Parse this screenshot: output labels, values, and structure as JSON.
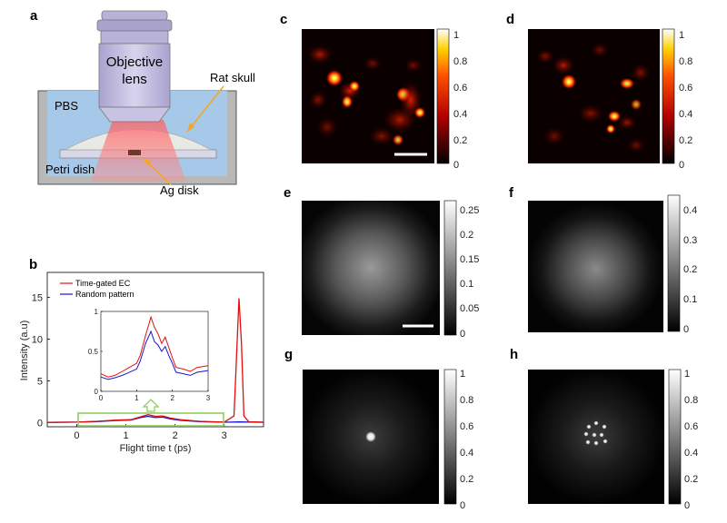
{
  "panel_labels": [
    "a",
    "b",
    "c",
    "d",
    "e",
    "f",
    "g",
    "h"
  ],
  "schematic": {
    "objective": [
      "Objective",
      "lens"
    ],
    "skull": "Rat skull",
    "pbs": "PBS",
    "petri": "Petri dish",
    "disk": "Ag disk"
  },
  "colorbars": {
    "c": [
      "1",
      "0.8",
      "0.6",
      "0.4",
      "0.2",
      "0"
    ],
    "d": [
      "1",
      "0.8",
      "0.6",
      "0.4",
      "0.2",
      "0"
    ],
    "e": [
      "0.25",
      "0.2",
      "0.15",
      "0.1",
      "0.05",
      "0"
    ],
    "f": [
      "0.4",
      "0.3",
      "0.2",
      "0.1",
      "0"
    ],
    "g": [
      "1",
      "0.8",
      "0.6",
      "0.4",
      "0.2",
      "0"
    ],
    "h": [
      "1",
      "0.8",
      "0.6",
      "0.4",
      "0.2",
      "0"
    ]
  },
  "chart_data": {
    "type": "line",
    "xlabel": "Flight time t (ps)",
    "ylabel": "Intensity (a.u)",
    "xticks": [
      "0",
      "1",
      "2",
      "3"
    ],
    "yticks": [
      "0",
      "5",
      "10",
      "15"
    ],
    "xlim": [
      -0.6,
      3.8
    ],
    "ylim": [
      -0.5,
      18
    ],
    "legend_position": "top-left",
    "series": [
      {
        "name": "Time-gated EC",
        "color": "#e01010",
        "x": [
          -0.6,
          0,
          0.4,
          0.8,
          1.1,
          1.3,
          1.45,
          1.6,
          1.75,
          1.9,
          2.1,
          2.5,
          3.0,
          3.2,
          3.3,
          3.35,
          3.4,
          3.5,
          3.8
        ],
        "y": [
          0.02,
          0.05,
          0.15,
          0.3,
          0.35,
          0.7,
          0.95,
          0.75,
          0.8,
          0.55,
          0.35,
          0.15,
          0.05,
          0.8,
          14.9,
          9.5,
          0.8,
          0.1,
          0.05
        ]
      },
      {
        "name": "Random pattern",
        "color": "#1515cc",
        "x": [
          -0.6,
          0,
          0.4,
          0.8,
          1.1,
          1.3,
          1.45,
          1.6,
          1.75,
          1.9,
          2.1,
          2.5,
          3.0,
          3.3,
          3.8
        ],
        "y": [
          0.02,
          0.05,
          0.12,
          0.25,
          0.3,
          0.6,
          0.75,
          0.6,
          0.65,
          0.45,
          0.28,
          0.12,
          0.04,
          0.08,
          0.03
        ]
      }
    ],
    "inset": {
      "xticks": [
        "0",
        "1",
        "2",
        "3"
      ],
      "yticks": [
        "0",
        "0.5",
        "1"
      ],
      "xlim": [
        0,
        3
      ],
      "ylim": [
        0,
        1
      ],
      "series": [
        {
          "name": "Time-gated EC",
          "color": "#e01010",
          "x": [
            0,
            0.2,
            0.4,
            0.6,
            0.8,
            1.0,
            1.1,
            1.25,
            1.4,
            1.5,
            1.6,
            1.7,
            1.8,
            1.9,
            2.0,
            2.1,
            2.3,
            2.5,
            2.7,
            3.0
          ],
          "y": [
            0.22,
            0.18,
            0.2,
            0.25,
            0.3,
            0.35,
            0.45,
            0.7,
            0.93,
            0.8,
            0.72,
            0.6,
            0.68,
            0.55,
            0.42,
            0.3,
            0.28,
            0.25,
            0.3,
            0.32
          ]
        },
        {
          "name": "Random pattern",
          "color": "#1515cc",
          "x": [
            0,
            0.2,
            0.4,
            0.6,
            0.8,
            1.0,
            1.1,
            1.25,
            1.4,
            1.5,
            1.6,
            1.7,
            1.8,
            1.9,
            2.0,
            2.1,
            2.3,
            2.5,
            2.7,
            3.0
          ],
          "y": [
            0.18,
            0.15,
            0.17,
            0.2,
            0.24,
            0.28,
            0.38,
            0.6,
            0.75,
            0.62,
            0.58,
            0.5,
            0.56,
            0.45,
            0.35,
            0.24,
            0.22,
            0.2,
            0.24,
            0.26
          ]
        }
      ]
    }
  }
}
